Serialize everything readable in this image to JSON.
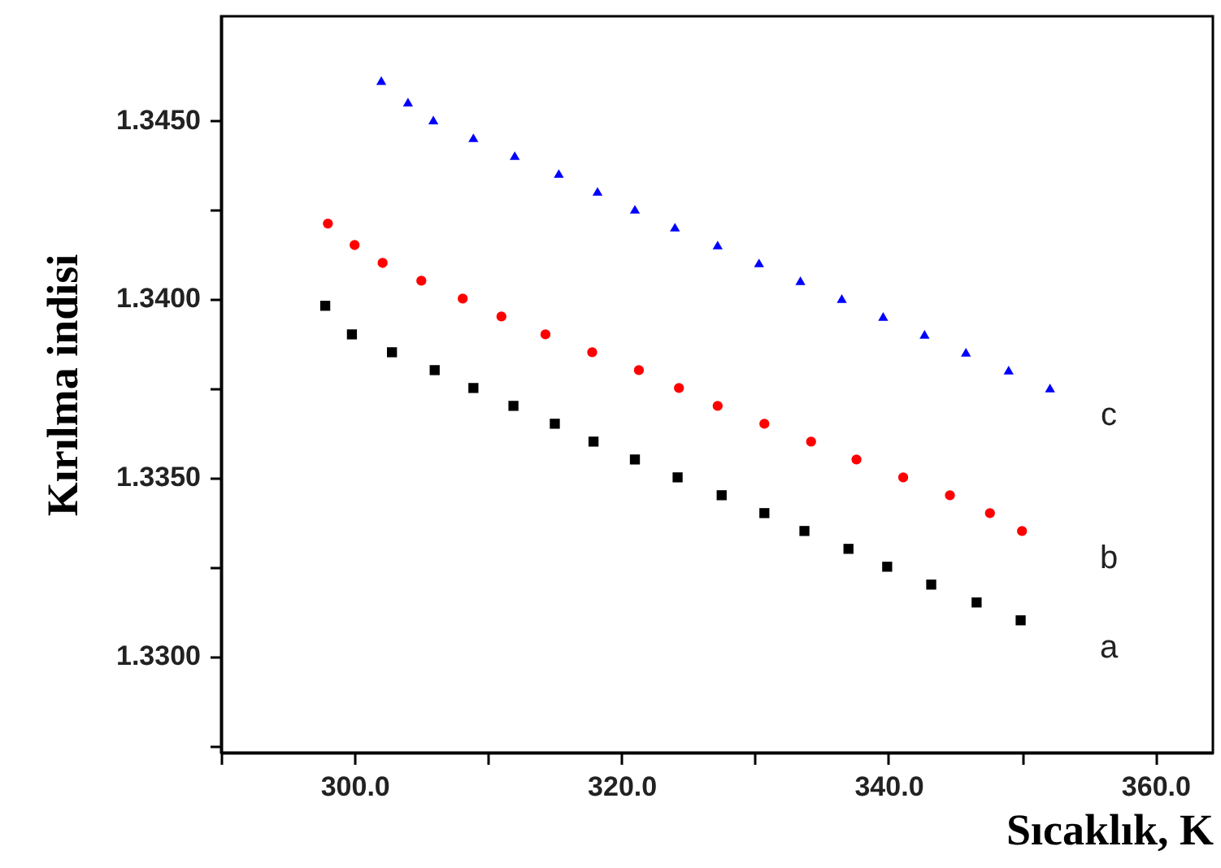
{
  "chart_data": {
    "type": "scatter",
    "xlabel": "Sıcaklık, K",
    "ylabel": "Kırılma indisi",
    "xlim": [
      290,
      364.3
    ],
    "ylim": [
      1.3273,
      1.3479
    ],
    "xticks": [
      {
        "value": 290,
        "label": null
      },
      {
        "value": 300,
        "label": "300.0"
      },
      {
        "value": 310,
        "label": null
      },
      {
        "value": 320,
        "label": "320.0"
      },
      {
        "value": 330,
        "label": null
      },
      {
        "value": 340,
        "label": "340.0"
      },
      {
        "value": 350,
        "label": null
      },
      {
        "value": 360,
        "label": "360.0"
      }
    ],
    "yticks": [
      {
        "value": 1.3275,
        "label": null
      },
      {
        "value": 1.33,
        "label": "1.3300"
      },
      {
        "value": 1.3325,
        "label": null
      },
      {
        "value": 1.335,
        "label": "1.3350"
      },
      {
        "value": 1.3375,
        "label": null
      },
      {
        "value": 1.34,
        "label": "1.3400"
      },
      {
        "value": 1.3425,
        "label": null
      },
      {
        "value": 1.345,
        "label": "1.3450"
      }
    ],
    "grid": false,
    "series": [
      {
        "name": "a",
        "color": "#000000",
        "marker": "square",
        "x": [
          297.8,
          299.8,
          302.8,
          306.0,
          308.9,
          311.9,
          315.0,
          317.9,
          321.0,
          324.2,
          327.5,
          330.7,
          333.7,
          337.0,
          339.9,
          343.2,
          346.6,
          349.9
        ],
        "values": [
          1.3398,
          1.339,
          1.3385,
          1.338,
          1.3375,
          1.337,
          1.3365,
          1.336,
          1.3355,
          1.335,
          1.3345,
          1.334,
          1.3335,
          1.333,
          1.3325,
          1.332,
          1.3315,
          1.331
        ]
      },
      {
        "name": "b",
        "color": "#ff0000",
        "marker": "circle",
        "x": [
          298.0,
          300.0,
          302.1,
          305.0,
          308.1,
          311.0,
          314.3,
          317.8,
          321.3,
          324.3,
          327.2,
          330.7,
          334.2,
          337.6,
          341.1,
          344.6,
          347.6,
          350.0
        ],
        "values": [
          1.3421,
          1.3415,
          1.341,
          1.3405,
          1.34,
          1.3395,
          1.339,
          1.3385,
          1.338,
          1.3375,
          1.337,
          1.3365,
          1.336,
          1.3355,
          1.335,
          1.3345,
          1.334,
          1.3335
        ]
      },
      {
        "name": "c",
        "color": "#0000ff",
        "marker": "triangle",
        "x": [
          302.0,
          304.0,
          305.9,
          308.9,
          312.0,
          315.3,
          318.2,
          321.0,
          324.0,
          327.2,
          330.3,
          333.4,
          336.5,
          339.6,
          342.7,
          345.8,
          349.0,
          352.1
        ],
        "values": [
          1.3461,
          1.3455,
          1.345,
          1.3445,
          1.344,
          1.3435,
          1.343,
          1.3425,
          1.342,
          1.3415,
          1.341,
          1.3405,
          1.34,
          1.3395,
          1.339,
          1.3385,
          1.338,
          1.3375
        ]
      }
    ]
  }
}
